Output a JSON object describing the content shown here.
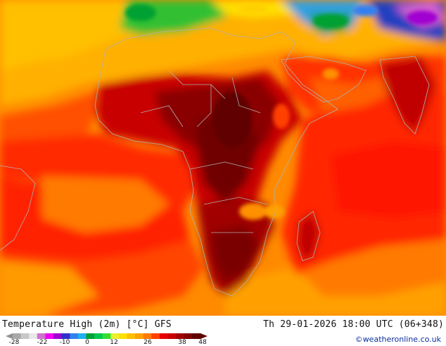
{
  "map": {
    "title": "Temperature High (2m) [°C] GFS",
    "valid_time": "Th 29-01-2026 18:00 UTC (06+348)",
    "credit": "©weatheronline.co.uk",
    "region": "Africa, Arabia, Indian Ocean",
    "variable": "2m maximum temperature",
    "units": "°C"
  },
  "legend": {
    "ticks": [
      "-28",
      "-22",
      "-10",
      "0",
      "12",
      "26",
      "38",
      "48"
    ],
    "colors": [
      "#a8a8a8",
      "#c8c8c8",
      "#e8e8e8",
      "#d070d0",
      "#f000f0",
      "#a000d0",
      "#3030c8",
      "#3080f0",
      "#20b0f0",
      "#00a030",
      "#00c850",
      "#30e030",
      "#e8f030",
      "#ffe000",
      "#ffc000",
      "#ffa000",
      "#ff7a00",
      "#ff4000",
      "#e80000",
      "#c80000",
      "#a00000",
      "#800000",
      "#600000"
    ]
  }
}
